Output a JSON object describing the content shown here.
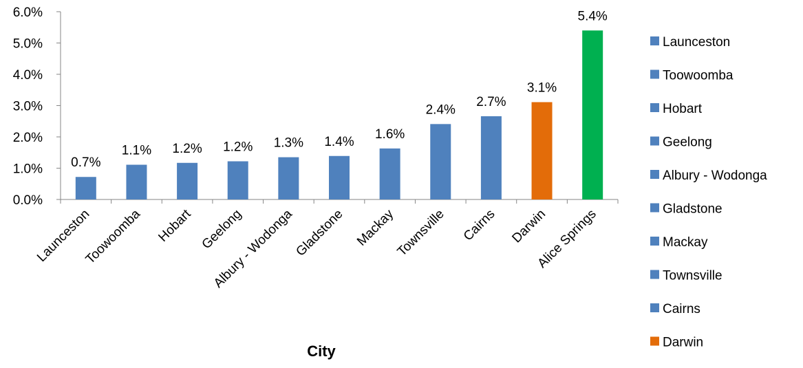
{
  "chart_data": {
    "type": "bar",
    "title": "",
    "xlabel": "City",
    "ylabel": "",
    "ylim": [
      0,
      0.06
    ],
    "yticks": [
      0,
      0.01,
      0.02,
      0.03,
      0.04,
      0.05,
      0.06
    ],
    "ytick_labels": [
      "0.0%",
      "1.0%",
      "2.0%",
      "3.0%",
      "4.0%",
      "5.0%",
      "6.0%"
    ],
    "categories": [
      "Launceston",
      "Toowoomba",
      "Hobart",
      "Geelong",
      "Albury - Wodonga",
      "Gladstone",
      "Mackay",
      "Townsville",
      "Cairns",
      "Darwin",
      "Alice Springs"
    ],
    "values": [
      0.0072,
      0.0111,
      0.0117,
      0.0122,
      0.0135,
      0.0139,
      0.0163,
      0.0241,
      0.0266,
      0.0311,
      0.054
    ],
    "data_labels": [
      "0.7%",
      "1.1%",
      "1.2%",
      "1.2%",
      "1.3%",
      "1.4%",
      "1.6%",
      "2.4%",
      "2.7%",
      "3.1%",
      "5.4%"
    ],
    "bar_colors": [
      "#4f81bd",
      "#4f81bd",
      "#4f81bd",
      "#4f81bd",
      "#4f81bd",
      "#4f81bd",
      "#4f81bd",
      "#4f81bd",
      "#4f81bd",
      "#e36c09",
      "#00b050"
    ],
    "grid": false,
    "legend": {
      "placement": "right",
      "entries": [
        {
          "label": "Launceston",
          "color": "#4f81bd"
        },
        {
          "label": "Toowoomba",
          "color": "#4f81bd"
        },
        {
          "label": "Hobart",
          "color": "#4f81bd"
        },
        {
          "label": "Geelong",
          "color": "#4f81bd"
        },
        {
          "label": "Albury - Wodonga",
          "color": "#4f81bd"
        },
        {
          "label": "Gladstone",
          "color": "#4f81bd"
        },
        {
          "label": "Mackay",
          "color": "#4f81bd"
        },
        {
          "label": "Townsville",
          "color": "#4f81bd"
        },
        {
          "label": "Cairns",
          "color": "#4f81bd"
        },
        {
          "label": "Darwin",
          "color": "#e36c09"
        }
      ]
    }
  }
}
